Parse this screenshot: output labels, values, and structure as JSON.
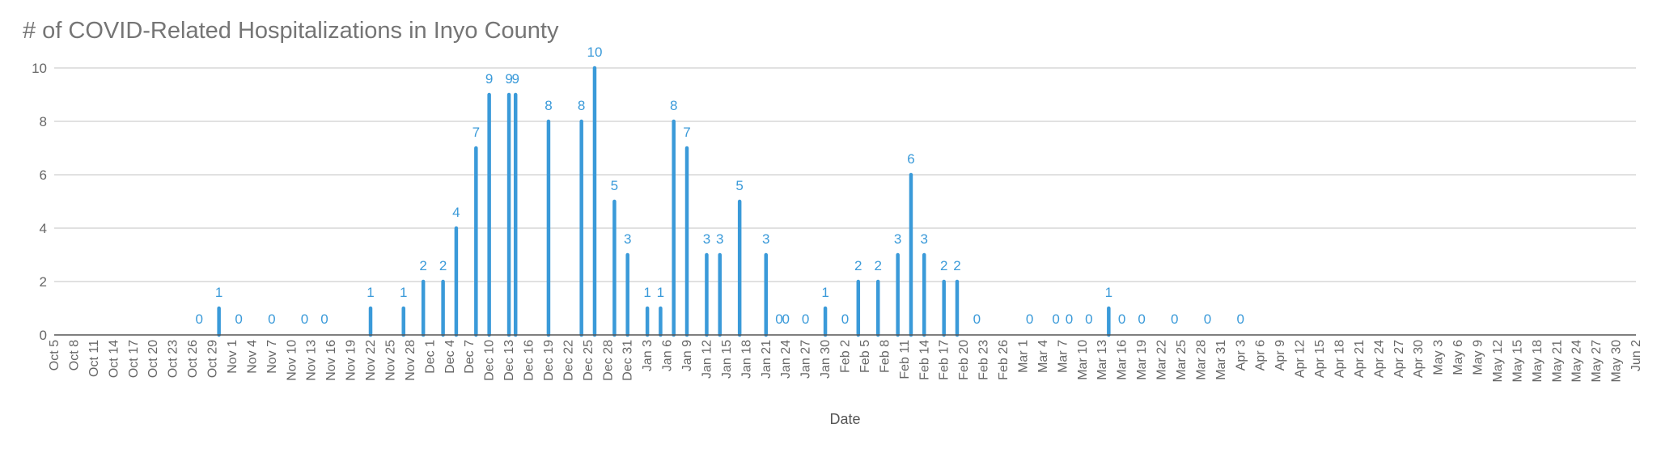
{
  "chart_data": {
    "type": "bar",
    "title": "# of COVID-Related Hospitalizations in Inyo County",
    "xlabel": "Date",
    "ylabel": "",
    "ylim": [
      0,
      10
    ],
    "yticks": [
      0,
      2,
      4,
      6,
      8,
      10
    ],
    "grid": true,
    "bar_color": "#3a9ad9",
    "categories": [
      "Oct 5",
      "Oct 8",
      "Oct 11",
      "Oct 14",
      "Oct 17",
      "Oct 20",
      "Oct 23",
      "Oct 26",
      "Oct 29",
      "Nov 1",
      "Nov 4",
      "Nov 7",
      "Nov 10",
      "Nov 13",
      "Nov 16",
      "Nov 19",
      "Nov 22",
      "Nov 25",
      "Nov 28",
      "Dec 1",
      "Dec 4",
      "Dec 7",
      "Dec 10",
      "Dec 13",
      "Dec 16",
      "Dec 19",
      "Dec 22",
      "Dec 25",
      "Dec 28",
      "Dec 31",
      "Jan 3",
      "Jan 6",
      "Jan 9",
      "Jan 12",
      "Jan 15",
      "Jan 18",
      "Jan 21",
      "Jan 24",
      "Jan 27",
      "Jan 30",
      "Feb 2",
      "Feb 5",
      "Feb 8",
      "Feb 11",
      "Feb 14",
      "Feb 17",
      "Feb 20",
      "Feb 23",
      "Feb 26",
      "Mar 1",
      "Mar 4",
      "Mar 7",
      "Mar 10",
      "Mar 13",
      "Mar 16",
      "Mar 19",
      "Mar 22",
      "Mar 25",
      "Mar 28",
      "Mar 31",
      "Apr 3",
      "Apr 6",
      "Apr 9",
      "Apr 12",
      "Apr 15",
      "Apr 18",
      "Apr 21",
      "Apr 24",
      "Apr 27",
      "Apr 30",
      "May 3",
      "May 6",
      "May 9",
      "May 12",
      "May 15",
      "May 18",
      "May 21",
      "May 24",
      "May 27",
      "May 30",
      "Jun 2"
    ],
    "points": [
      {
        "date": "Oct 27",
        "value": 0
      },
      {
        "date": "Oct 30",
        "value": 1
      },
      {
        "date": "Nov 2",
        "value": 0
      },
      {
        "date": "Nov 7",
        "value": 0
      },
      {
        "date": "Nov 12",
        "value": 0
      },
      {
        "date": "Nov 15",
        "value": 0
      },
      {
        "date": "Nov 22",
        "value": 1
      },
      {
        "date": "Nov 27",
        "value": 1
      },
      {
        "date": "Nov 30",
        "value": 2
      },
      {
        "date": "Dec 3",
        "value": 2
      },
      {
        "date": "Dec 5",
        "value": 4
      },
      {
        "date": "Dec 8",
        "value": 7
      },
      {
        "date": "Dec 10",
        "value": 9
      },
      {
        "date": "Dec 13",
        "value": 9
      },
      {
        "date": "Dec 14",
        "value": 9
      },
      {
        "date": "Dec 19",
        "value": 8
      },
      {
        "date": "Dec 24",
        "value": 8
      },
      {
        "date": "Dec 26",
        "value": 10
      },
      {
        "date": "Dec 29",
        "value": 5
      },
      {
        "date": "Dec 31",
        "value": 3
      },
      {
        "date": "Jan 3",
        "value": 1
      },
      {
        "date": "Jan 5",
        "value": 1
      },
      {
        "date": "Jan 7",
        "value": 8
      },
      {
        "date": "Jan 9",
        "value": 7
      },
      {
        "date": "Jan 12",
        "value": 3
      },
      {
        "date": "Jan 14",
        "value": 3
      },
      {
        "date": "Jan 17",
        "value": 5
      },
      {
        "date": "Jan 21",
        "value": 3
      },
      {
        "date": "Jan 23",
        "value": 0
      },
      {
        "date": "Jan 24",
        "value": 0
      },
      {
        "date": "Jan 27",
        "value": 0
      },
      {
        "date": "Jan 30",
        "value": 1
      },
      {
        "date": "Feb 2",
        "value": 0
      },
      {
        "date": "Feb 4",
        "value": 2
      },
      {
        "date": "Feb 7",
        "value": 2
      },
      {
        "date": "Feb 10",
        "value": 3
      },
      {
        "date": "Feb 12",
        "value": 6
      },
      {
        "date": "Feb 14",
        "value": 3
      },
      {
        "date": "Feb 17",
        "value": 2
      },
      {
        "date": "Feb 19",
        "value": 2
      },
      {
        "date": "Feb 22",
        "value": 0
      },
      {
        "date": "Mar 2",
        "value": 0
      },
      {
        "date": "Mar 6",
        "value": 0
      },
      {
        "date": "Mar 8",
        "value": 0
      },
      {
        "date": "Mar 11",
        "value": 0
      },
      {
        "date": "Mar 14",
        "value": 1
      },
      {
        "date": "Mar 16",
        "value": 0
      },
      {
        "date": "Mar 19",
        "value": 0
      },
      {
        "date": "Mar 24",
        "value": 0
      },
      {
        "date": "Mar 29",
        "value": 0
      },
      {
        "date": "Apr 3",
        "value": 0
      }
    ]
  }
}
